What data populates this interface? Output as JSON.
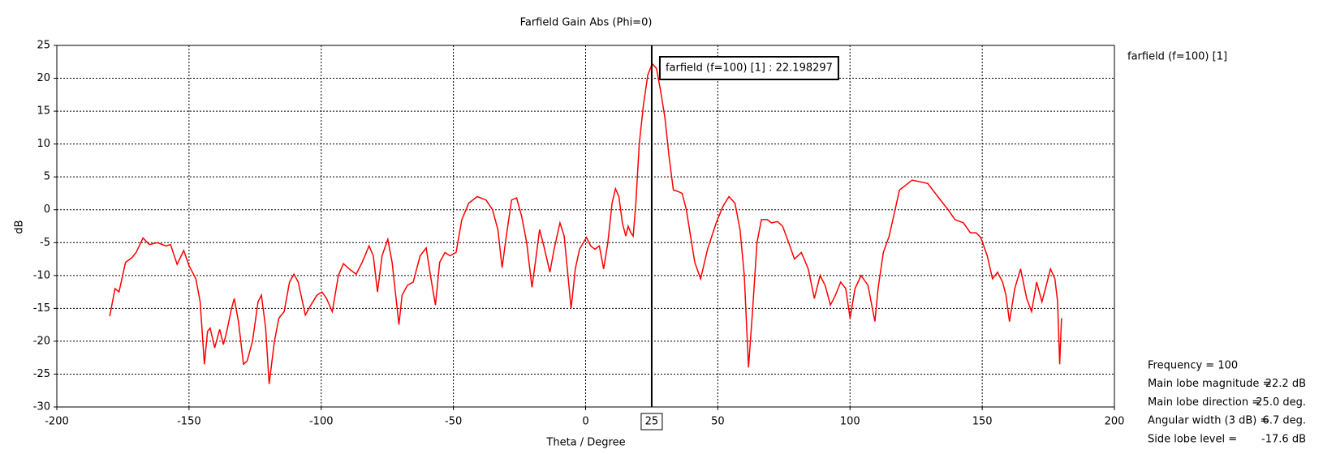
{
  "chart_data": {
    "type": "line",
    "title": "Farfield Gain Abs (Phi=0)",
    "x_label": "Theta / Degree",
    "y_label": "dB",
    "xlim": [
      -200,
      200
    ],
    "ylim": [
      -30,
      25
    ],
    "xticks": [
      -200,
      -150,
      -100,
      -50,
      0,
      50,
      100,
      150,
      200
    ],
    "yticks": [
      -30,
      -25,
      -20,
      -15,
      -10,
      -5,
      0,
      5,
      10,
      15,
      20,
      25
    ],
    "grid": true,
    "legend": "top-right",
    "series": [
      {
        "name": "farfield (f=100) [1]",
        "color": "#ff0000",
        "x": [
          -180,
          -178,
          -176.5,
          -174,
          -171.6,
          -170,
          -167.4,
          -165,
          -162,
          -158.7,
          -157,
          -154.5,
          -152,
          -150,
          -147.4,
          -145.8,
          -144.2,
          -143,
          -142,
          -140.3,
          -138.4,
          -137,
          -136,
          -133.9,
          -132.9,
          -131.3,
          -129.4,
          -128,
          -126,
          -123.9,
          -122.6,
          -121,
          -119.7,
          -117.7,
          -116,
          -114,
          -112,
          -110.3,
          -108.7,
          -106,
          -103.9,
          -101.6,
          -99.7,
          -98,
          -95.8,
          -93.5,
          -91.6,
          -89.4,
          -86.8,
          -84.5,
          -81.9,
          -80.3,
          -78.7,
          -77,
          -74.8,
          -73.2,
          -70.6,
          -69.4,
          -67.4,
          -65.2,
          -62.6,
          -60.3,
          -58.7,
          -56.8,
          -55.2,
          -53.2,
          -51.3,
          -49,
          -46.8,
          -44.2,
          -41,
          -37.7,
          -35.2,
          -33.2,
          -31.6,
          -30,
          -28,
          -26.1,
          -24.2,
          -22.3,
          -20.3,
          -19,
          -17.4,
          -15.8,
          -13.5,
          -11.9,
          -9.7,
          -8.1,
          -5.5,
          -3.9,
          -2.3,
          0.3,
          1.9,
          3.5,
          5.2,
          6.8,
          8.4,
          10,
          11.3,
          12.6,
          13.9,
          15.2,
          16.1,
          17.1,
          18,
          19,
          20.3,
          21.9,
          23.5,
          25.2,
          26.8,
          28.4,
          30,
          31.6,
          33.2,
          34.8,
          36.5,
          38.1,
          39.7,
          41.3,
          43.5,
          46.1,
          49.4,
          51.9,
          54.2,
          56.5,
          58.4,
          60,
          61.6,
          63.2,
          64.8,
          66.5,
          68.7,
          70.3,
          72.6,
          74.5,
          76.8,
          79,
          81.6,
          84.2,
          86.5,
          88.7,
          90.6,
          92.6,
          94.5,
          96.5,
          98.4,
          100,
          101.9,
          104.2,
          106.8,
          109.4,
          110.6,
          112.6,
          114.8,
          118.7,
          123.5,
          129.4,
          133.2,
          137.1,
          139.7,
          142.9,
          145.5,
          147.7,
          149.4,
          151.9,
          153.9,
          155.8,
          157.7,
          159,
          160.3,
          162.3,
          164.5,
          166.8,
          168.7,
          170.6,
          172.6,
          173.9,
          175.8,
          177.5,
          178.5,
          179.3,
          180
        ],
        "values": [
          -16.2,
          -12,
          -12.5,
          -8,
          -7.3,
          -6.5,
          -4.3,
          -5.3,
          -5,
          -5.5,
          -5.3,
          -8.3,
          -6.2,
          -8.5,
          -10.5,
          -14,
          -23.5,
          -18.5,
          -18,
          -21,
          -18.2,
          -20.5,
          -19,
          -15,
          -13.5,
          -17,
          -23.5,
          -23,
          -20,
          -14,
          -13,
          -18,
          -26.5,
          -20,
          -16.5,
          -15.5,
          -11,
          -9.8,
          -11,
          -16,
          -14.5,
          -13,
          -12.5,
          -13.5,
          -15.5,
          -10,
          -8.2,
          -9,
          -9.8,
          -8,
          -5.5,
          -7,
          -12.5,
          -7,
          -4.5,
          -8,
          -17.5,
          -13,
          -11.5,
          -11,
          -7,
          -5.8,
          -10,
          -14.5,
          -8,
          -6.5,
          -7,
          -6.5,
          -1.5,
          1,
          2,
          1.5,
          0,
          -3,
          -8.8,
          -4,
          1.5,
          1.8,
          -1,
          -5,
          -11.8,
          -8,
          -3,
          -5.5,
          -9.5,
          -6,
          -2,
          -4,
          -15,
          -9,
          -6,
          -4.2,
          -5.5,
          -6,
          -5.5,
          -9,
          -5,
          1,
          3.2,
          2,
          -2,
          -4,
          -2.5,
          -3.5,
          -4,
          1,
          10,
          16,
          20.5,
          22.2,
          21.5,
          18,
          14,
          8,
          3,
          2.8,
          2.5,
          0,
          -4,
          -8,
          -10.5,
          -6,
          -2,
          0.5,
          2,
          1,
          -3,
          -10,
          -24,
          -15,
          -5,
          -1.5,
          -1.5,
          -2,
          -1.8,
          -2.5,
          -5,
          -7.5,
          -6.5,
          -9,
          -13.5,
          -10,
          -11.5,
          -14.5,
          -13,
          -11,
          -12,
          -16.5,
          -12,
          -10,
          -11.5,
          -17,
          -12,
          -6.5,
          -4,
          3,
          4.5,
          4,
          2,
          0,
          -1.5,
          -2,
          -3.5,
          -3.5,
          -4.2,
          -7,
          -10.5,
          -9.5,
          -11,
          -13,
          -17,
          -12,
          -9,
          -13.5,
          -15.5,
          -11,
          -14,
          -12,
          -9,
          -10.5,
          -14,
          -23.5,
          -16.5
        ]
      }
    ],
    "marker": {
      "x": 25,
      "annotation": "farfield (f=100) [1] : 22.198297"
    },
    "info": [
      {
        "label": "Frequency = 100",
        "value": ""
      },
      {
        "label": "Main lobe magnitude =",
        "value": "22.2 dB"
      },
      {
        "label": "Main lobe direction =",
        "value": "25.0 deg."
      },
      {
        "label": "Angular width (3 dB) =",
        "value": "6.7 deg."
      },
      {
        "label": "Side lobe level =",
        "value": "-17.6 dB"
      }
    ]
  }
}
